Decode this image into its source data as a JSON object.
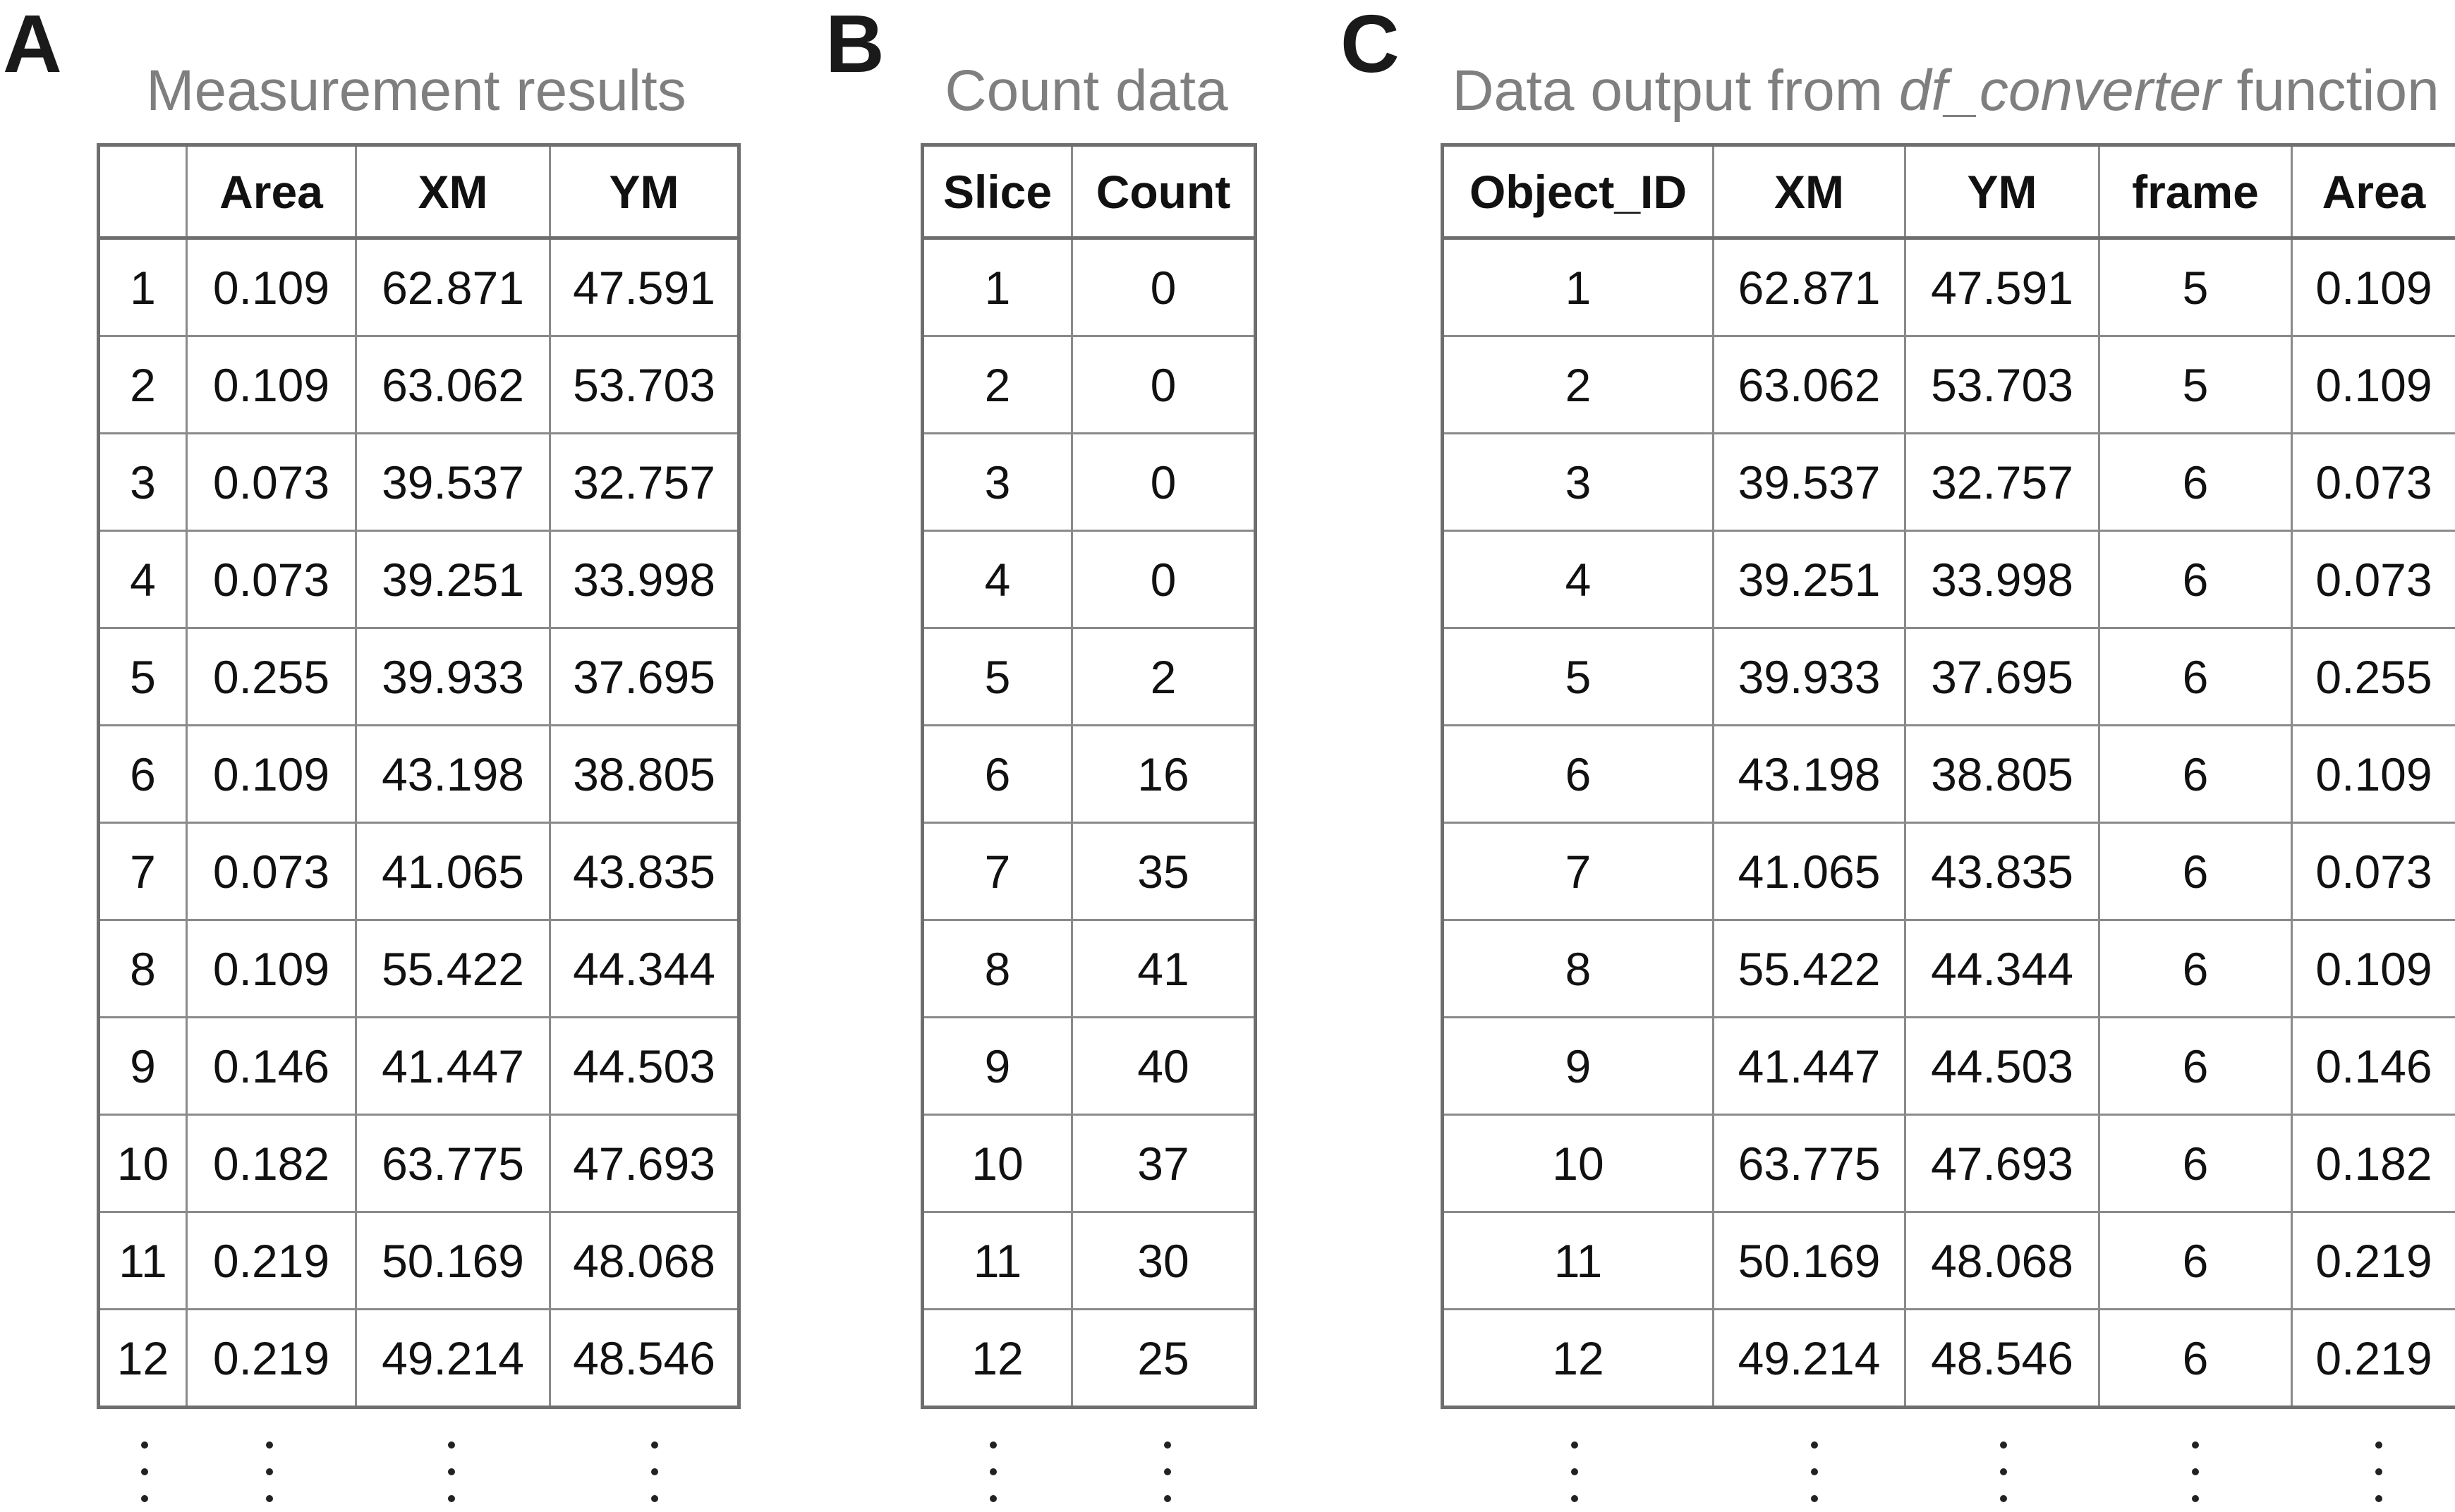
{
  "panel_a": {
    "letter": "A",
    "title": "Measurement results",
    "headers": [
      "",
      "Area",
      "XM",
      "YM"
    ],
    "rows": [
      [
        "1",
        "0.109",
        "62.871",
        "47.591"
      ],
      [
        "2",
        "0.109",
        "63.062",
        "53.703"
      ],
      [
        "3",
        "0.073",
        "39.537",
        "32.757"
      ],
      [
        "4",
        "0.073",
        "39.251",
        "33.998"
      ],
      [
        "5",
        "0.255",
        "39.933",
        "37.695"
      ],
      [
        "6",
        "0.109",
        "43.198",
        "38.805"
      ],
      [
        "7",
        "0.073",
        "41.065",
        "43.835"
      ],
      [
        "8",
        "0.109",
        "55.422",
        "44.344"
      ],
      [
        "9",
        "0.146",
        "41.447",
        "44.503"
      ],
      [
        "10",
        "0.182",
        "63.775",
        "47.693"
      ],
      [
        "11",
        "0.219",
        "50.169",
        "48.068"
      ],
      [
        "12",
        "0.219",
        "49.214",
        "48.546"
      ]
    ]
  },
  "panel_b": {
    "letter": "B",
    "title": "Count data",
    "headers": [
      "Slice",
      "Count"
    ],
    "rows": [
      [
        "1",
        "0"
      ],
      [
        "2",
        "0"
      ],
      [
        "3",
        "0"
      ],
      [
        "4",
        "0"
      ],
      [
        "5",
        "2"
      ],
      [
        "6",
        "16"
      ],
      [
        "7",
        "35"
      ],
      [
        "8",
        "41"
      ],
      [
        "9",
        "40"
      ],
      [
        "10",
        "37"
      ],
      [
        "11",
        "30"
      ],
      [
        "12",
        "25"
      ]
    ]
  },
  "panel_c": {
    "letter": "C",
    "title_prefix": "Data output from ",
    "title_italic": "df_converter",
    "title_suffix": " function",
    "headers": [
      "Object_ID",
      "XM",
      "YM",
      "frame",
      "Area"
    ],
    "rows": [
      [
        "1",
        "62.871",
        "47.591",
        "5",
        "0.109"
      ],
      [
        "2",
        "63.062",
        "53.703",
        "5",
        "0.109"
      ],
      [
        "3",
        "39.537",
        "32.757",
        "6",
        "0.073"
      ],
      [
        "4",
        "39.251",
        "33.998",
        "6",
        "0.073"
      ],
      [
        "5",
        "39.933",
        "37.695",
        "6",
        "0.255"
      ],
      [
        "6",
        "43.198",
        "38.805",
        "6",
        "0.109"
      ],
      [
        "7",
        "41.065",
        "43.835",
        "6",
        "0.073"
      ],
      [
        "8",
        "55.422",
        "44.344",
        "6",
        "0.109"
      ],
      [
        "9",
        "41.447",
        "44.503",
        "6",
        "0.146"
      ],
      [
        "10",
        "63.775",
        "47.693",
        "6",
        "0.182"
      ],
      [
        "11",
        "50.169",
        "48.068",
        "6",
        "0.219"
      ],
      [
        "12",
        "49.214",
        "48.546",
        "6",
        "0.219"
      ]
    ]
  }
}
